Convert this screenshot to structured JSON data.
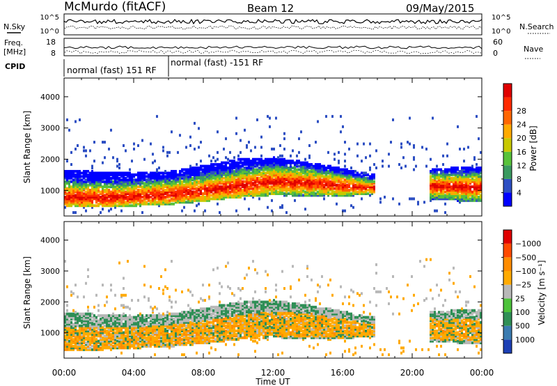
{
  "header": {
    "station": "McMurdo (fitACF)",
    "beam": "Beam 12",
    "date": "09/May/2015"
  },
  "top_strip": {
    "left_label": "N.Sky",
    "right_label": "N.Search",
    "left_ticks": [
      "10^5",
      "10^0"
    ],
    "right_ticks": [
      "10^5",
      "10^0"
    ],
    "freq_label_1": "Freq.",
    "freq_label_2": "[MHz]",
    "freq_ticks": [
      "18",
      "8"
    ],
    "nave_label": "Nave",
    "nave_ticks": [
      "60",
      "0"
    ],
    "cpid_label": "CPID",
    "cpid_segments": [
      "normal (fast) 151 RF",
      "normal (fast) -151 RF"
    ]
  },
  "chart_data": [
    {
      "type": "heatmap",
      "title": "",
      "xlabel": "",
      "ylabel": "Slant Range [km]",
      "x_tick_labels": [
        "00:00",
        "04:00",
        "08:00",
        "12:00",
        "16:00",
        "20:00",
        "00:00"
      ],
      "xlim_hours": [
        0,
        24
      ],
      "y_ticks": [
        1000,
        2000,
        3000,
        4000
      ],
      "ylim": [
        180,
        4600
      ],
      "colorbar": {
        "label": "Power [dB]",
        "ticks": [
          "4",
          "8",
          "12",
          "16",
          "20",
          "24",
          "28"
        ],
        "colors": [
          "#0000ff",
          "#2d4fc3",
          "#3a9a60",
          "#58c23a",
          "#c8c800",
          "#ffaa00",
          "#ff6600",
          "#ff2a00",
          "#e00000"
        ]
      },
      "profile": [
        {
          "t": 0.0,
          "lo": 500,
          "core": 800,
          "hi": 1650
        },
        {
          "t": 2.0,
          "lo": 480,
          "core": 780,
          "hi": 1600
        },
        {
          "t": 4.0,
          "lo": 500,
          "core": 820,
          "hi": 1550
        },
        {
          "t": 6.0,
          "lo": 550,
          "core": 900,
          "hi": 1600
        },
        {
          "t": 8.0,
          "lo": 650,
          "core": 1000,
          "hi": 1800
        },
        {
          "t": 10.0,
          "lo": 780,
          "core": 1150,
          "hi": 2000
        },
        {
          "t": 12.0,
          "lo": 850,
          "core": 1300,
          "hi": 2050
        },
        {
          "t": 14.0,
          "lo": 800,
          "core": 1250,
          "hi": 1900
        },
        {
          "t": 16.0,
          "lo": 800,
          "core": 1150,
          "hi": 1700
        },
        {
          "t": 17.5,
          "lo": 900,
          "core": 1100,
          "hi": 1500
        },
        {
          "t": 21.0,
          "lo": 700,
          "core": 1150,
          "hi": 1700
        },
        {
          "t": 24.0,
          "lo": 650,
          "core": 1100,
          "hi": 1750
        }
      ],
      "gaps_hours": [
        [
          17.8,
          21.0
        ]
      ]
    },
    {
      "type": "heatmap",
      "title": "",
      "xlabel": "Time UT",
      "ylabel": "Slant Range [km]",
      "x_tick_labels": [
        "00:00",
        "04:00",
        "08:00",
        "12:00",
        "16:00",
        "20:00",
        "00:00"
      ],
      "xlim_hours": [
        0,
        24
      ],
      "y_ticks": [
        1000,
        2000,
        3000,
        4000
      ],
      "ylim": [
        180,
        4600
      ],
      "colorbar": {
        "label": "Velocity [m s⁻¹]",
        "ticks": [
          "1000",
          "500",
          "100",
          "25",
          "−25",
          "−100",
          "−500",
          "−1000"
        ],
        "colors": [
          "#1c3fb5",
          "#3a7bb0",
          "#2f8f56",
          "#4cc23a",
          "#b8b8b8",
          "#ffaa00",
          "#ff8c00",
          "#ff4a00",
          "#e00000"
        ]
      },
      "profile": [
        {
          "t": 0.0,
          "lo": 450,
          "core": 800,
          "hi": 1650
        },
        {
          "t": 2.0,
          "lo": 450,
          "core": 780,
          "hi": 1600
        },
        {
          "t": 4.0,
          "lo": 500,
          "core": 820,
          "hi": 1550
        },
        {
          "t": 6.0,
          "lo": 550,
          "core": 900,
          "hi": 1600
        },
        {
          "t": 8.0,
          "lo": 650,
          "core": 1000,
          "hi": 1800
        },
        {
          "t": 10.0,
          "lo": 780,
          "core": 1150,
          "hi": 2000
        },
        {
          "t": 12.0,
          "lo": 850,
          "core": 1300,
          "hi": 2050
        },
        {
          "t": 14.0,
          "lo": 800,
          "core": 1250,
          "hi": 1900
        },
        {
          "t": 16.0,
          "lo": 800,
          "core": 1150,
          "hi": 1700
        },
        {
          "t": 17.5,
          "lo": 900,
          "core": 1100,
          "hi": 1500
        },
        {
          "t": 21.0,
          "lo": 700,
          "core": 1150,
          "hi": 1700
        },
        {
          "t": 24.0,
          "lo": 650,
          "core": 1100,
          "hi": 1750
        }
      ],
      "gaps_hours": [
        [
          17.8,
          21.0
        ]
      ]
    }
  ]
}
